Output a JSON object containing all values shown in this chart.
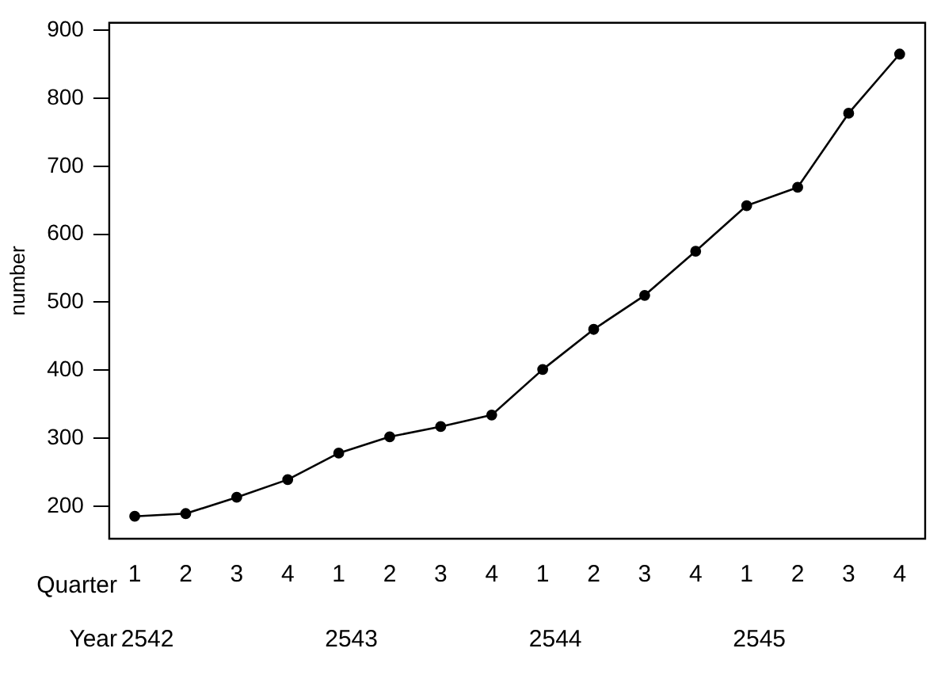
{
  "chart_data": {
    "type": "line",
    "ylabel": "number",
    "categories": [
      "1",
      "2",
      "3",
      "4",
      "1",
      "2",
      "3",
      "4",
      "1",
      "2",
      "3",
      "4",
      "1",
      "2",
      "3",
      "4"
    ],
    "series": [
      {
        "color": "#000000",
        "values": [
          185,
          189,
          213,
          239,
          278,
          302,
          317,
          334,
          401,
          460,
          510,
          575,
          642,
          669,
          778,
          865
        ]
      }
    ],
    "ylim": [
      152,
      911
    ],
    "yticks": [
      200,
      300,
      400,
      500,
      600,
      700,
      800,
      900
    ],
    "annotations": [
      "Quarter",
      "Year",
      "2542",
      "2543",
      "2544",
      "2545"
    ],
    "grid": false,
    "legend": false,
    "marker": "circle",
    "line_style": "solid"
  }
}
